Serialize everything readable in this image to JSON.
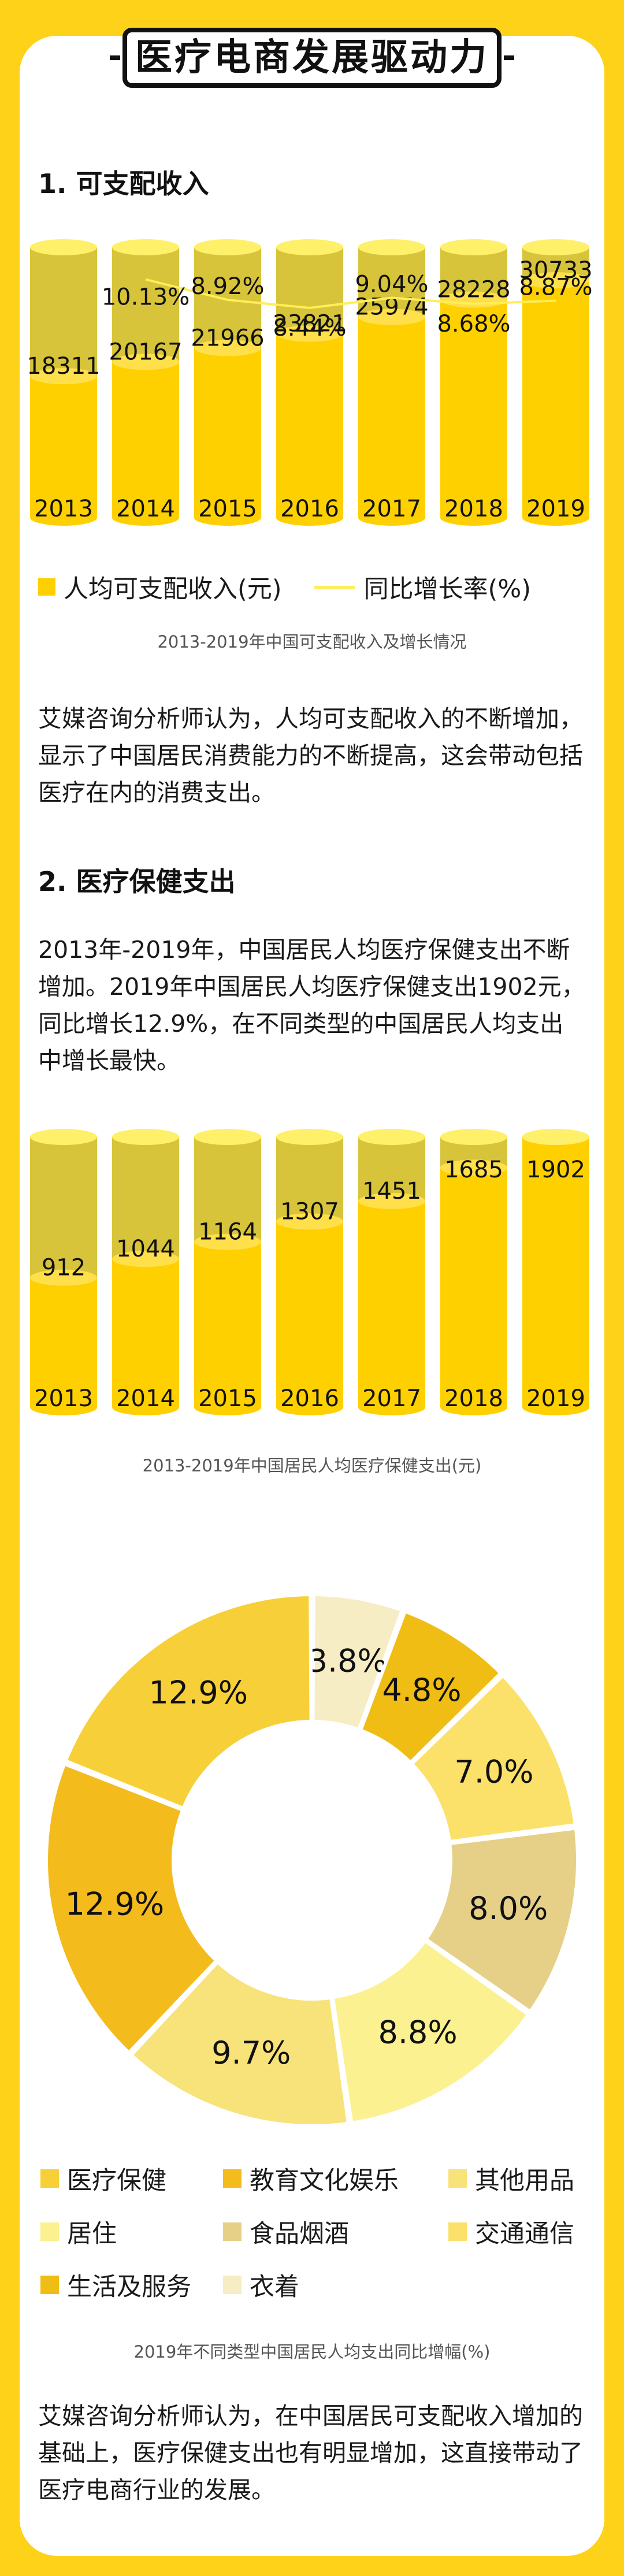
{
  "banner": {
    "title": "医疗电商发展驱动力"
  },
  "section1": {
    "heading": "1. 可支配收入",
    "legend_bar": "人均可支配收入(元)",
    "legend_line": "同比增长率(%)",
    "caption": "2013-2019年中国可支配收入及增长情况",
    "paragraph": "艾媒咨询分析师认为，人均可支配收入的不断增加，显示了中国居民消费能力的不断提高，这会带动包括医疗在内的消费支出。"
  },
  "section2": {
    "heading": "2. 医疗保健支出",
    "paragraph": "2013年-2019年，中国居民人均医疗保健支出不断增加。2019年中国居民人均医疗保健支出1902元，同比增长12.9%，在不同类型的中国居民人均支出中增长最快。",
    "caption": "2013-2019年中国居民人均医疗保健支出(元)"
  },
  "section3": {
    "caption": "2019年不同类型中国居民人均支出同比增幅(%)",
    "paragraph": "艾媒咨询分析师认为，在中国居民可支配收入增加的基础上，医疗保健支出也有明显增加，这直接带动了医疗电商行业的发展。"
  },
  "colors": {
    "page_bg": "#ffd21a",
    "bar_fill": "#ffd000",
    "bar_track": "#d8c43a",
    "line": "#ffee55"
  },
  "chart_data": [
    {
      "type": "bar",
      "categories": [
        "2013",
        "2014",
        "2015",
        "2016",
        "2017",
        "2018",
        "2019"
      ],
      "series": [
        {
          "name": "人均可支配收入(元)",
          "type": "bar",
          "values": [
            18311,
            20167,
            21966,
            23821,
            25974,
            28228,
            30733
          ]
        },
        {
          "name": "同比增长率(%)",
          "type": "line",
          "values": [
            null,
            10.13,
            8.92,
            8.44,
            9.04,
            8.68,
            8.87
          ]
        }
      ],
      "value_labels": [
        "18311",
        "20167",
        "21966",
        "23821",
        "25974",
        "28228",
        "30733"
      ],
      "rate_labels": [
        "",
        "10.13%",
        "8.92%",
        "8.44%",
        "9.04%",
        "8.68%",
        "8.87%"
      ],
      "ylim": [
        0,
        35000
      ]
    },
    {
      "type": "bar",
      "categories": [
        "2013",
        "2014",
        "2015",
        "2016",
        "2017",
        "2018",
        "2019"
      ],
      "values": [
        912,
        1044,
        1164,
        1307,
        1451,
        1685,
        1902
      ],
      "value_labels": [
        "912",
        "1044",
        "1164",
        "1307",
        "1451",
        "1685",
        "1902"
      ],
      "ylim": [
        0,
        1902
      ]
    },
    {
      "type": "pie",
      "style": "donut",
      "slices": [
        {
          "name": "医疗保健",
          "value": 12.9,
          "label": "12.9%",
          "color": "#f7cf38"
        },
        {
          "name": "教育文化娱乐",
          "value": 12.9,
          "label": "12.9%",
          "color": "#f3bc1c"
        },
        {
          "name": "其他用品",
          "value": 9.7,
          "label": "9.7%",
          "color": "#f8e27a"
        },
        {
          "name": "居住",
          "value": 8.8,
          "label": "8.8%",
          "color": "#fbf190"
        },
        {
          "name": "食品烟酒",
          "value": 8.0,
          "label": "8.0%",
          "color": "#e6d088"
        },
        {
          "name": "交通通信",
          "value": 7.0,
          "label": "7.0%",
          "color": "#fbe16a"
        },
        {
          "name": "生活及服务",
          "value": 4.8,
          "label": "4.8%",
          "color": "#f0bd14"
        },
        {
          "name": "衣着",
          "value": 3.8,
          "label": "3.8%",
          "color": "#f6edc4"
        }
      ],
      "legend": [
        {
          "name": "医疗保健",
          "color": "#f7cf38"
        },
        {
          "name": "教育文化娱乐",
          "color": "#f3bc1c"
        },
        {
          "name": "其他用品",
          "color": "#f8e27a"
        },
        {
          "name": "居住",
          "color": "#fbf190"
        },
        {
          "name": "食品烟酒",
          "color": "#e6d088"
        },
        {
          "name": "交通通信",
          "color": "#fbe16a"
        },
        {
          "name": "生活及服务",
          "color": "#f0bd14"
        },
        {
          "name": "衣着",
          "color": "#f6edc4"
        }
      ]
    }
  ]
}
